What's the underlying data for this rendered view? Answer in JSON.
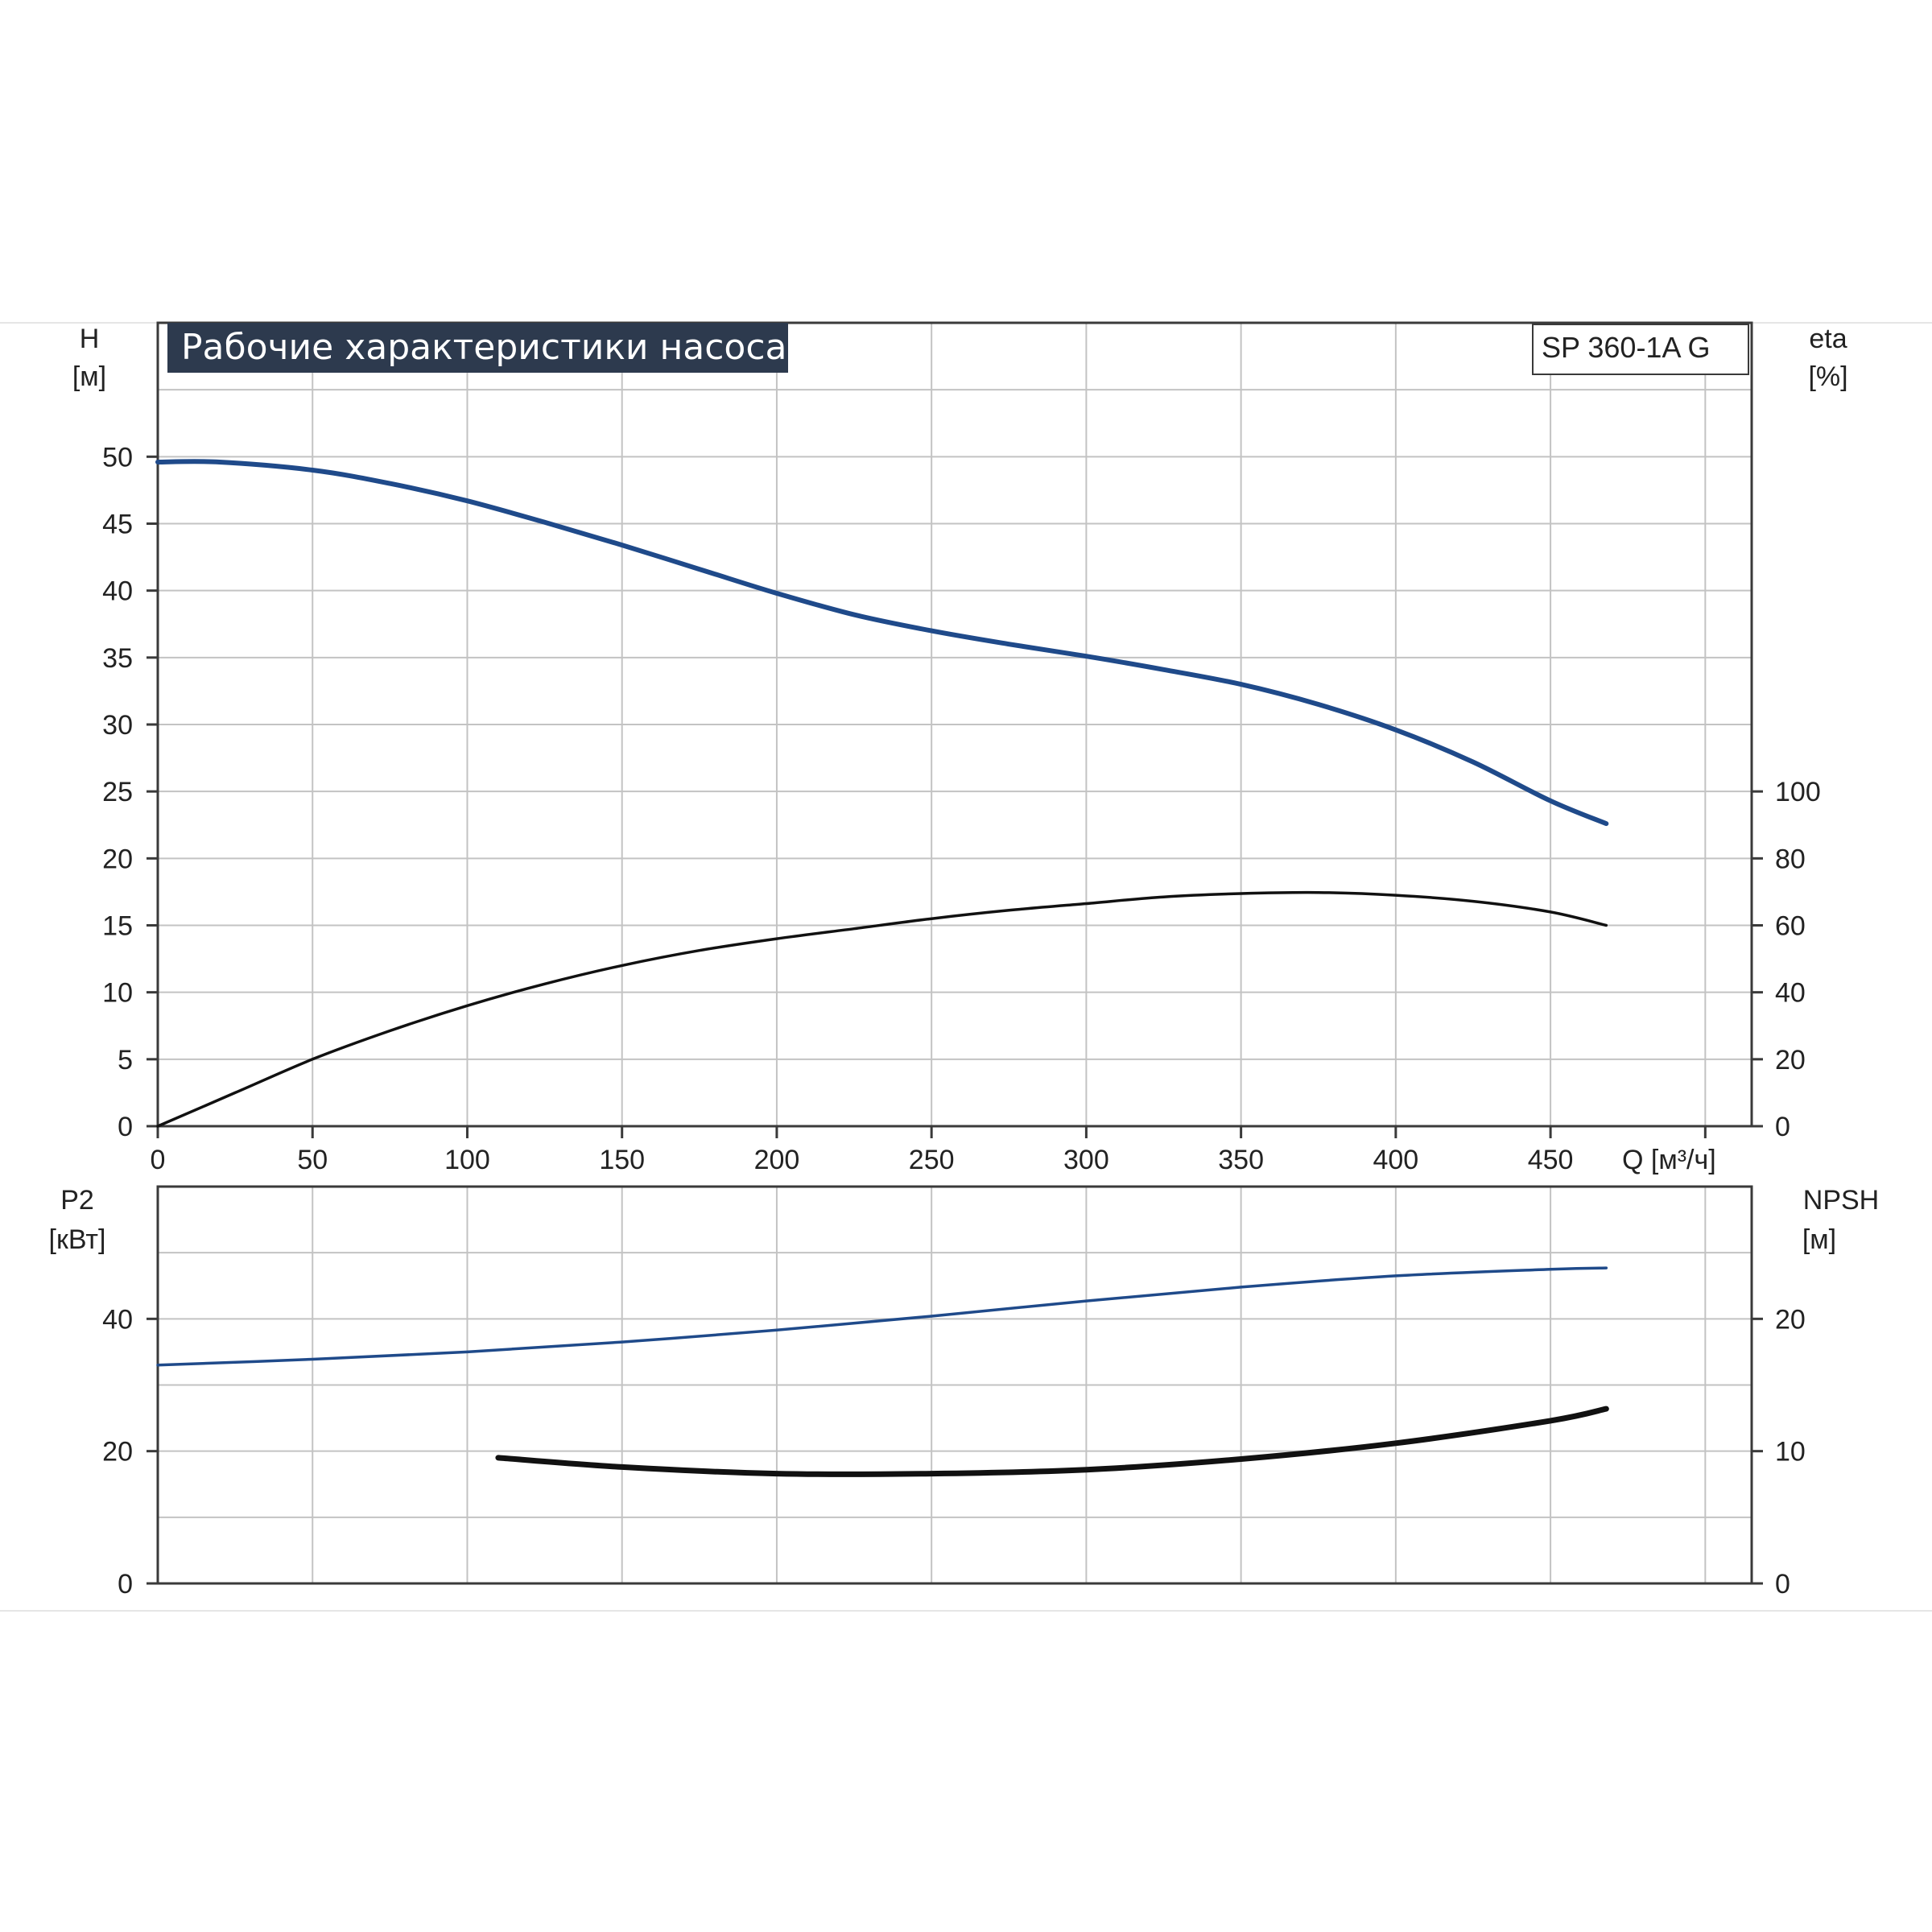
{
  "header": {
    "title": "Рабочие характеристики насоса",
    "model": "SP 360-1A G"
  },
  "colors": {
    "title_bg": "#2d3a4e",
    "head_curve": "#1f4a8a",
    "power_curve": "#1f4a8a",
    "eta_curve": "#111111",
    "npsh_curve": "#111111",
    "grid": "#c3c3c3",
    "frame": "#3a3a3a"
  },
  "chart_data": [
    {
      "type": "line",
      "xlabel": "Q [м³/ч]",
      "x_ticks": [
        "0",
        "50",
        "100",
        "150",
        "200",
        "250",
        "300",
        "350",
        "400",
        "450"
      ],
      "xlim": [
        0,
        515
      ],
      "left_axis": {
        "label_top": "H",
        "label_unit": "[м]",
        "ylim": [
          0,
          60
        ],
        "ticks": [
          "0",
          "5",
          "10",
          "15",
          "20",
          "25",
          "30",
          "35",
          "40",
          "45",
          "50"
        ]
      },
      "right_axis": {
        "label_top": "eta",
        "label_unit": "[%]",
        "ylim": [
          0,
          240
        ],
        "ticks": [
          "0",
          "20",
          "40",
          "60",
          "80",
          "100"
        ]
      },
      "grid": true,
      "series": [
        {
          "axis": "left",
          "x": [
            0,
            20,
            50,
            75,
            100,
            125,
            150,
            175,
            200,
            225,
            250,
            275,
            300,
            325,
            350,
            375,
            400,
            425,
            450,
            468
          ],
          "values": [
            49.6,
            49.6,
            49.0,
            48.0,
            46.7,
            45.1,
            43.4,
            41.6,
            39.8,
            38.2,
            37.0,
            36.0,
            35.1,
            34.1,
            33.0,
            31.5,
            29.6,
            27.2,
            24.3,
            22.6
          ]
        },
        {
          "axis": "right",
          "x": [
            0,
            25,
            50,
            75,
            100,
            125,
            150,
            175,
            200,
            225,
            250,
            275,
            300,
            325,
            350,
            375,
            400,
            425,
            450,
            468
          ],
          "values": [
            0,
            10,
            20,
            28.5,
            36,
            42.5,
            48,
            52.5,
            56,
            59,
            62,
            64.5,
            66.5,
            68.5,
            69.5,
            69.8,
            69,
            67.2,
            64,
            60
          ]
        }
      ]
    },
    {
      "type": "line",
      "xlabel": "",
      "xlim": [
        0,
        515
      ],
      "left_axis": {
        "label_top": "P2",
        "label_unit": "[кВт]",
        "ylim": [
          0,
          60
        ],
        "ticks": [
          "0",
          "20",
          "40"
        ]
      },
      "right_axis": {
        "label_top": "NPSH",
        "label_unit": "[м]",
        "ylim": [
          0,
          30
        ],
        "ticks": [
          "0",
          "10",
          "20"
        ]
      },
      "grid": true,
      "series": [
        {
          "axis": "left",
          "x": [
            0,
            50,
            100,
            150,
            200,
            250,
            300,
            350,
            400,
            450,
            468
          ],
          "values": [
            33,
            33.9,
            35,
            36.5,
            38.3,
            40.4,
            42.7,
            44.8,
            46.5,
            47.5,
            47.7
          ]
        },
        {
          "axis": "right",
          "x": [
            110,
            150,
            200,
            250,
            300,
            350,
            400,
            450,
            468
          ],
          "values": [
            9.5,
            8.8,
            8.3,
            8.3,
            8.6,
            9.4,
            10.6,
            12.3,
            13.2
          ]
        }
      ]
    }
  ]
}
